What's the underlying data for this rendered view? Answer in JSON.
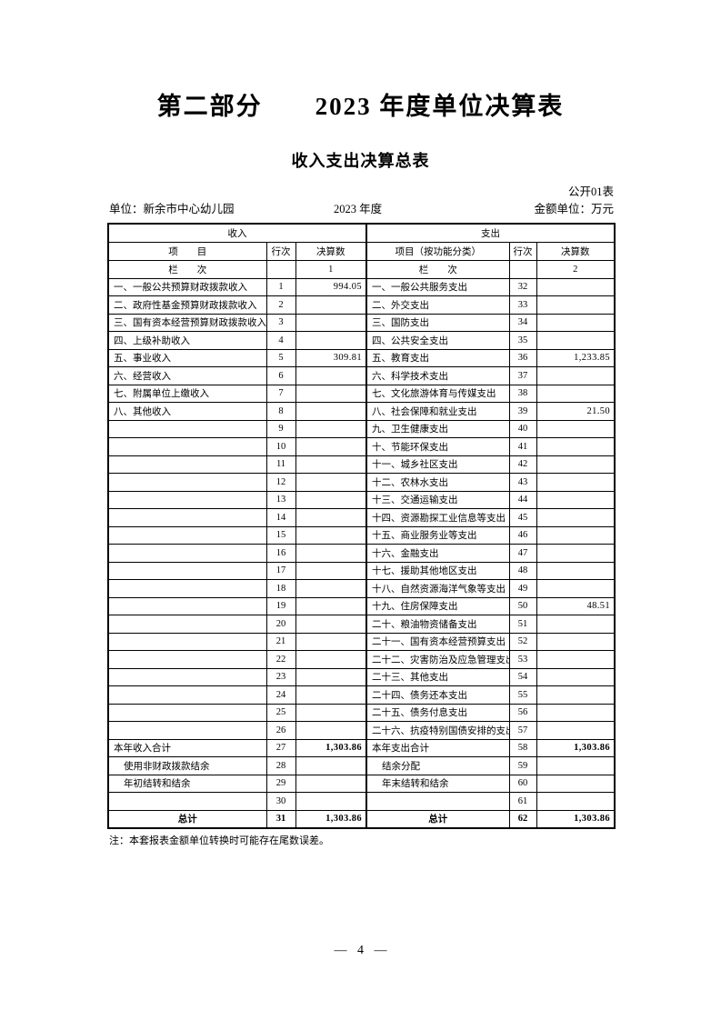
{
  "page": {
    "part_title": "第二部分　　2023 年度单位决算表",
    "table_title": "收入支出决算总表",
    "form_code": "公开01表",
    "unit_label": "单位：新余市中心幼儿园",
    "year_label": "2023 年度",
    "amount_unit_label": "金额单位：万元",
    "note": "注：本套报表金额单位转换时可能存在尾数误差。",
    "page_number": "— 4 —"
  },
  "table": {
    "sections": {
      "income": "收入",
      "expense": "支出"
    },
    "col_headers": {
      "income_item": "项　　目",
      "income_row_no": "行次",
      "income_amount": "决算数",
      "expense_item": "项目（按功能分类）",
      "expense_row_no": "行次",
      "expense_amount": "决算数"
    },
    "column_no_row": {
      "income_label": "栏　　次",
      "income_no": "1",
      "expense_label": "栏　　次",
      "expense_no": "2"
    },
    "rows": [
      {
        "income_item": "一、一般公共预算财政拨款收入",
        "income_row": "1",
        "income_amount": "994.05",
        "expense_item": "一、一般公共服务支出",
        "expense_row": "32",
        "expense_amount": "",
        "style": ""
      },
      {
        "income_item": "二、政府性基金预算财政拨款收入",
        "income_row": "2",
        "income_amount": "",
        "expense_item": "二、外交支出",
        "expense_row": "33",
        "expense_amount": "",
        "style": ""
      },
      {
        "income_item": "三、国有资本经营预算财政拨款收入",
        "income_row": "3",
        "income_amount": "",
        "expense_item": "三、国防支出",
        "expense_row": "34",
        "expense_amount": "",
        "style": ""
      },
      {
        "income_item": "四、上级补助收入",
        "income_row": "4",
        "income_amount": "",
        "expense_item": "四、公共安全支出",
        "expense_row": "35",
        "expense_amount": "",
        "style": ""
      },
      {
        "income_item": "五、事业收入",
        "income_row": "5",
        "income_amount": "309.81",
        "expense_item": "五、教育支出",
        "expense_row": "36",
        "expense_amount": "1,233.85",
        "style": ""
      },
      {
        "income_item": "六、经营收入",
        "income_row": "6",
        "income_amount": "",
        "expense_item": "六、科学技术支出",
        "expense_row": "37",
        "expense_amount": "",
        "style": ""
      },
      {
        "income_item": "七、附属单位上缴收入",
        "income_row": "7",
        "income_amount": "",
        "expense_item": "七、文化旅游体育与传媒支出",
        "expense_row": "38",
        "expense_amount": "",
        "style": ""
      },
      {
        "income_item": "八、其他收入",
        "income_row": "8",
        "income_amount": "",
        "expense_item": "八、社会保障和就业支出",
        "expense_row": "39",
        "expense_amount": "21.50",
        "style": ""
      },
      {
        "income_item": "",
        "income_row": "9",
        "income_amount": "",
        "expense_item": "九、卫生健康支出",
        "expense_row": "40",
        "expense_amount": "",
        "style": ""
      },
      {
        "income_item": "",
        "income_row": "10",
        "income_amount": "",
        "expense_item": "十、节能环保支出",
        "expense_row": "41",
        "expense_amount": "",
        "style": ""
      },
      {
        "income_item": "",
        "income_row": "11",
        "income_amount": "",
        "expense_item": "十一、城乡社区支出",
        "expense_row": "42",
        "expense_amount": "",
        "style": ""
      },
      {
        "income_item": "",
        "income_row": "12",
        "income_amount": "",
        "expense_item": "十二、农林水支出",
        "expense_row": "43",
        "expense_amount": "",
        "style": ""
      },
      {
        "income_item": "",
        "income_row": "13",
        "income_amount": "",
        "expense_item": "十三、交通运输支出",
        "expense_row": "44",
        "expense_amount": "",
        "style": ""
      },
      {
        "income_item": "",
        "income_row": "14",
        "income_amount": "",
        "expense_item": "十四、资源勘探工业信息等支出",
        "expense_row": "45",
        "expense_amount": "",
        "style": ""
      },
      {
        "income_item": "",
        "income_row": "15",
        "income_amount": "",
        "expense_item": "十五、商业服务业等支出",
        "expense_row": "46",
        "expense_amount": "",
        "style": ""
      },
      {
        "income_item": "",
        "income_row": "16",
        "income_amount": "",
        "expense_item": "十六、金融支出",
        "expense_row": "47",
        "expense_amount": "",
        "style": ""
      },
      {
        "income_item": "",
        "income_row": "17",
        "income_amount": "",
        "expense_item": "十七、援助其他地区支出",
        "expense_row": "48",
        "expense_amount": "",
        "style": ""
      },
      {
        "income_item": "",
        "income_row": "18",
        "income_amount": "",
        "expense_item": "十八、自然资源海洋气象等支出",
        "expense_row": "49",
        "expense_amount": "",
        "style": ""
      },
      {
        "income_item": "",
        "income_row": "19",
        "income_amount": "",
        "expense_item": "十九、住房保障支出",
        "expense_row": "50",
        "expense_amount": "48.51",
        "style": ""
      },
      {
        "income_item": "",
        "income_row": "20",
        "income_amount": "",
        "expense_item": "二十、粮油物资储备支出",
        "expense_row": "51",
        "expense_amount": "",
        "style": ""
      },
      {
        "income_item": "",
        "income_row": "21",
        "income_amount": "",
        "expense_item": "二十一、国有资本经营预算支出",
        "expense_row": "52",
        "expense_amount": "",
        "style": ""
      },
      {
        "income_item": "",
        "income_row": "22",
        "income_amount": "",
        "expense_item": "二十二、灾害防治及应急管理支出",
        "expense_row": "53",
        "expense_amount": "",
        "style": ""
      },
      {
        "income_item": "",
        "income_row": "23",
        "income_amount": "",
        "expense_item": "二十三、其他支出",
        "expense_row": "54",
        "expense_amount": "",
        "style": ""
      },
      {
        "income_item": "",
        "income_row": "24",
        "income_amount": "",
        "expense_item": "二十四、债务还本支出",
        "expense_row": "55",
        "expense_amount": "",
        "style": ""
      },
      {
        "income_item": "",
        "income_row": "25",
        "income_amount": "",
        "expense_item": "二十五、债务付息支出",
        "expense_row": "56",
        "expense_amount": "",
        "style": ""
      },
      {
        "income_item": "",
        "income_row": "26",
        "income_amount": "",
        "expense_item": "二十六、抗疫特别国债安排的支出",
        "expense_row": "57",
        "expense_amount": "",
        "style": ""
      },
      {
        "income_item": "本年收入合计",
        "income_row": "27",
        "income_amount": "1,303.86",
        "expense_item": "本年支出合计",
        "expense_row": "58",
        "expense_amount": "1,303.86",
        "style": "sum"
      },
      {
        "income_item": "使用非财政拨款结余",
        "income_row": "28",
        "income_amount": "",
        "expense_item": "结余分配",
        "expense_row": "59",
        "expense_amount": "",
        "style": "indent"
      },
      {
        "income_item": "年初结转和结余",
        "income_row": "29",
        "income_amount": "",
        "expense_item": "年末结转和结余",
        "expense_row": "60",
        "expense_amount": "",
        "style": "indent"
      },
      {
        "income_item": "",
        "income_row": "30",
        "income_amount": "",
        "expense_item": "",
        "expense_row": "61",
        "expense_amount": "",
        "style": ""
      },
      {
        "income_item": "总计",
        "income_row": "31",
        "income_amount": "1,303.86",
        "expense_item": "总计",
        "expense_row": "62",
        "expense_amount": "1,303.86",
        "style": "grand"
      }
    ]
  }
}
